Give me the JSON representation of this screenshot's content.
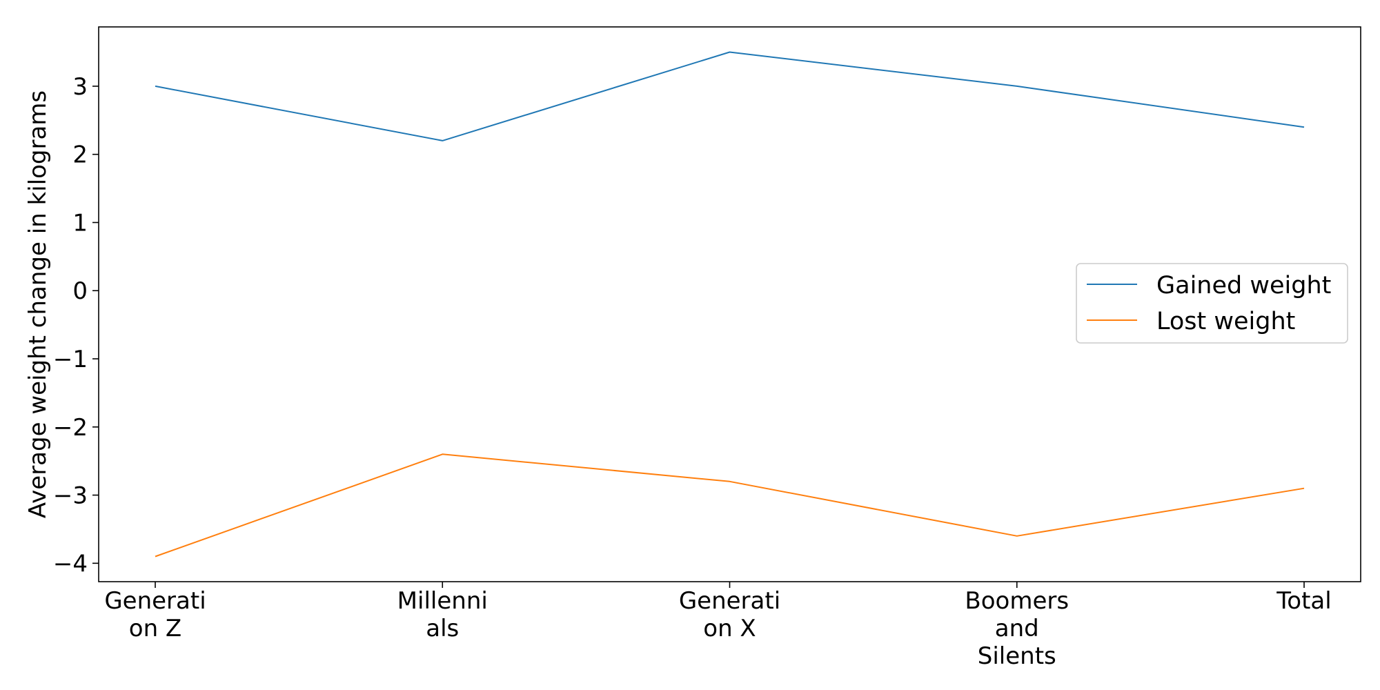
{
  "chart_data": {
    "type": "line",
    "categories": [
      [
        "Generati",
        "on Z"
      ],
      [
        "Millenni",
        "als"
      ],
      [
        "Generati",
        "on X"
      ],
      [
        "Boomers",
        "and",
        "Silents"
      ],
      [
        "Total"
      ]
    ],
    "series": [
      {
        "name": "Gained weight",
        "color": "#1f77b4",
        "values": [
          3.0,
          2.2,
          3.5,
          3.0,
          2.4
        ]
      },
      {
        "name": "Lost weight",
        "color": "#ff7f0e",
        "values": [
          -3.9,
          -2.4,
          -2.8,
          -3.6,
          -2.9
        ]
      }
    ],
    "xlabel": "",
    "ylabel": "Average weight change in kilograms",
    "ylim": [
      -4.27,
      3.87
    ],
    "yticks": [
      3,
      2,
      1,
      0,
      -1,
      -2,
      -3,
      -4
    ],
    "ytick_labels": [
      "3",
      "2",
      "1",
      "0",
      "−1",
      "−2",
      "−3",
      "−4"
    ],
    "grid": false,
    "legend_position": "center-right"
  }
}
